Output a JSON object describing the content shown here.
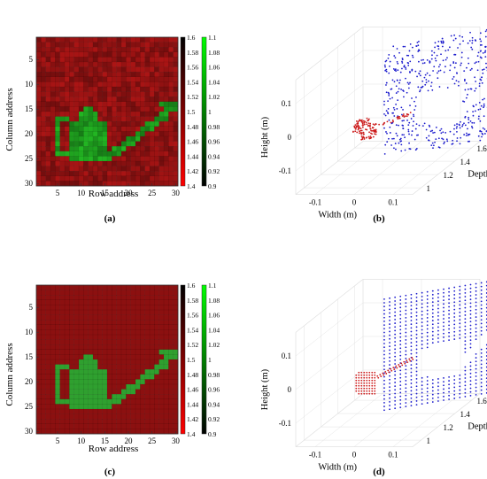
{
  "chart_data": [
    {
      "panel": "a",
      "type": "heatmap",
      "panel_label": "(a)",
      "xlabel": "Row address",
      "ylabel": "Column address",
      "grid_size": [
        30,
        30
      ],
      "xticks": [
        "5",
        "10",
        "15",
        "20",
        "25",
        "30"
      ],
      "yticks": [
        "5",
        "10",
        "15",
        "20",
        "25",
        "30"
      ],
      "colorbar_left": {
        "range": [
          1.4,
          1.6
        ],
        "ticks": [
          "1.6",
          "1.58",
          "1.56",
          "1.54",
          "1.52",
          "1.5",
          "1.48",
          "1.46",
          "1.44",
          "1.42",
          "1.4"
        ]
      },
      "colorbar_right": {
        "range": [
          0.9,
          1.1
        ],
        "ticks": [
          "1.1",
          "1.08",
          "1.06",
          "1.04",
          "1.02",
          "1",
          "0.98",
          "0.96",
          "0.94",
          "0.92",
          "0.9"
        ]
      },
      "background_color": "#8c1010",
      "object_color": "#2fa02f",
      "noisy": true,
      "object_shape": "watering-can"
    },
    {
      "panel": "b",
      "type": "scatter",
      "panel_label": "(b)",
      "projection": "3d",
      "xlabel": "Width (m)",
      "ylabel": "Depth (m)",
      "zlabel": "Height (m)",
      "xticks": [
        "-0.1",
        "0",
        "0.1"
      ],
      "yticks": [
        "1",
        "1.2",
        "1.4",
        "1.6"
      ],
      "zticks": [
        "-0.1",
        "0",
        "0.1"
      ],
      "series": [
        {
          "color": "#1a1acc",
          "layout": "random"
        },
        {
          "color": "#cc1a1a",
          "layout": "random"
        }
      ]
    },
    {
      "panel": "c",
      "type": "heatmap",
      "panel_label": "(c)",
      "xlabel": "Row address",
      "ylabel": "Column address",
      "grid_size": [
        30,
        30
      ],
      "xticks": [
        "5",
        "10",
        "15",
        "20",
        "25",
        "30"
      ],
      "yticks": [
        "5",
        "10",
        "15",
        "20",
        "25",
        "30"
      ],
      "colorbar_left": {
        "range": [
          1.4,
          1.6
        ],
        "ticks": [
          "1.6",
          "1.58",
          "1.56",
          "1.54",
          "1.52",
          "1.5",
          "1.48",
          "1.46",
          "1.44",
          "1.42",
          "1.4"
        ]
      },
      "colorbar_right": {
        "range": [
          0.9,
          1.1
        ],
        "ticks": [
          "1.1",
          "1.08",
          "1.06",
          "1.04",
          "1.02",
          "1",
          "0.98",
          "0.96",
          "0.94",
          "0.92",
          "0.9"
        ]
      },
      "background_color": "#8c1010",
      "object_color": "#2fa02f",
      "noisy": false,
      "object_shape": "watering-can"
    },
    {
      "panel": "d",
      "type": "scatter",
      "panel_label": "(d)",
      "projection": "3d",
      "xlabel": "Width (m)",
      "ylabel": "Depth (m)",
      "zlabel": "Height (m)",
      "xticks": [
        "-0.1",
        "0",
        "0.1"
      ],
      "yticks": [
        "1",
        "1.2",
        "1.4",
        "1.6"
      ],
      "zticks": [
        "-0.1",
        "0",
        "0.1"
      ],
      "series": [
        {
          "color": "#1a1acc",
          "layout": "grid"
        },
        {
          "color": "#cc1a1a",
          "layout": "grid"
        }
      ]
    }
  ]
}
